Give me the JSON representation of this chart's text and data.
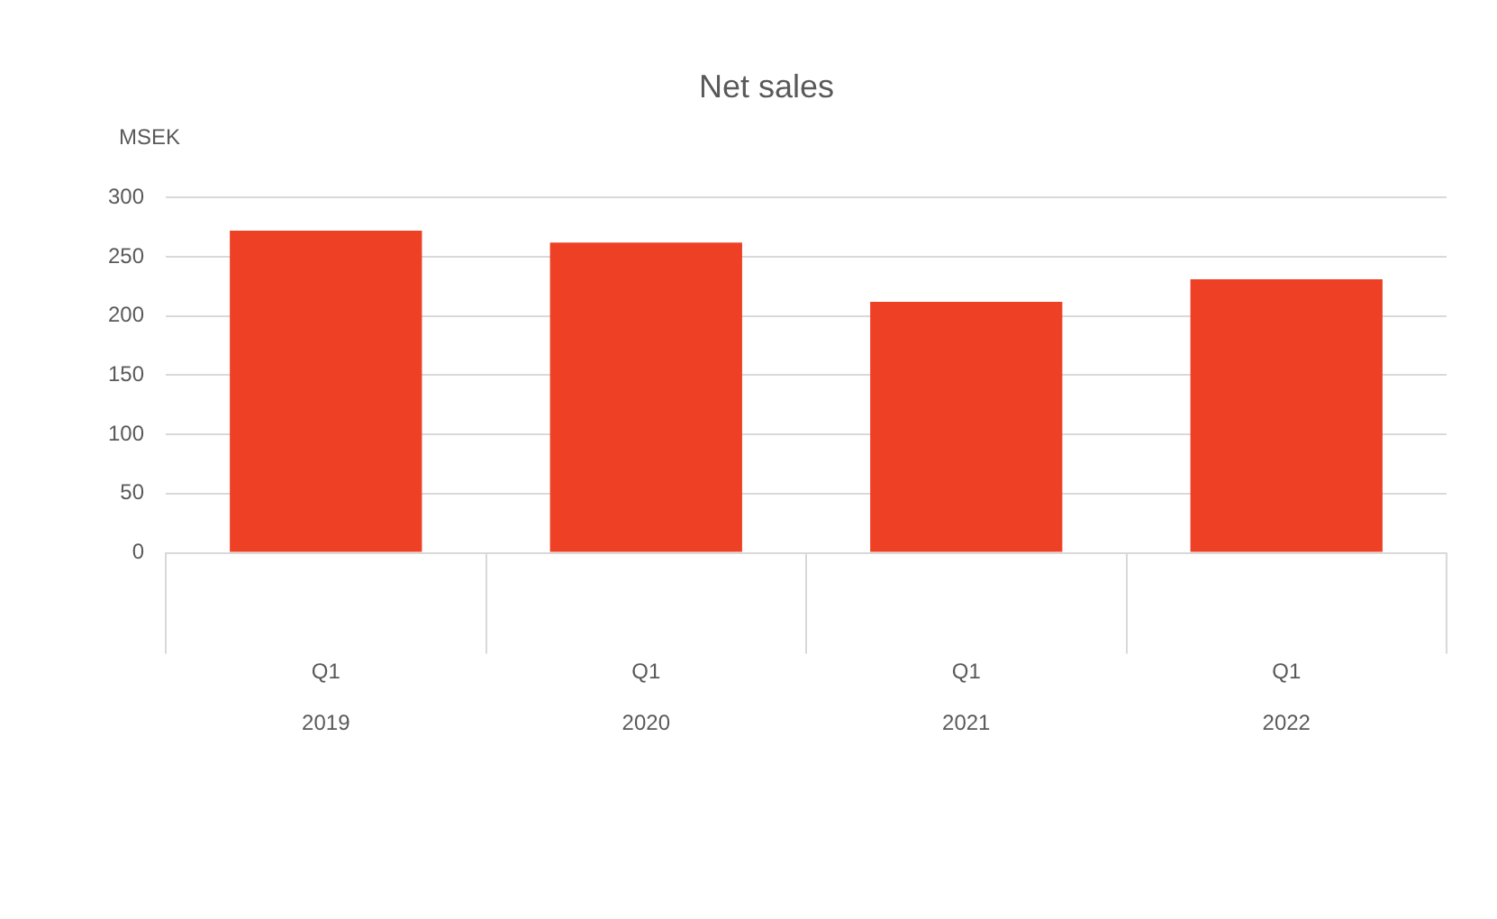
{
  "chart_data": {
    "type": "bar",
    "title": "Net sales",
    "ylabel": "MSEK",
    "categories": [
      "Q1 2019",
      "Q1 2020",
      "Q1 2021",
      "Q1 2022"
    ],
    "series": [
      {
        "color": "#ee4024",
        "values": [
          272,
          262,
          212,
          231
        ]
      }
    ],
    "ylim": [
      0,
      300
    ],
    "yticks": [
      0,
      50,
      100,
      150,
      200,
      250,
      300
    ],
    "grid": "y",
    "legend": false
  }
}
